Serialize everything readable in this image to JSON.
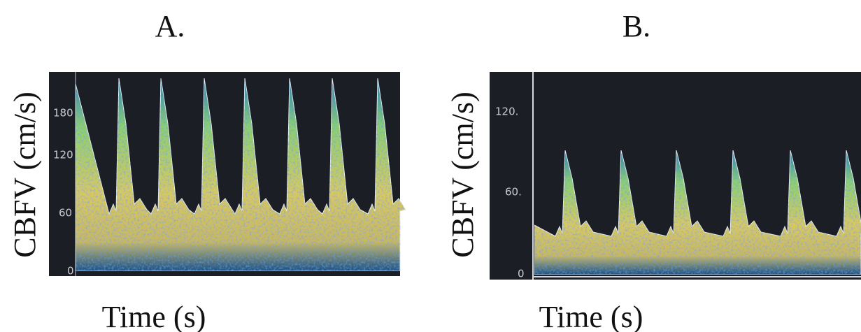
{
  "panels": [
    {
      "label": "A.",
      "y_axis_label": "CBFV (cm/s)",
      "x_axis_label": "Time (s)",
      "scale_labels": [
        "180",
        "120",
        "60",
        "0"
      ]
    },
    {
      "label": "B.",
      "y_axis_label": "CBFV (cm/s)",
      "x_axis_label": "Time (s)",
      "scale_labels": [
        "120.",
        "60.",
        "0"
      ]
    }
  ]
}
